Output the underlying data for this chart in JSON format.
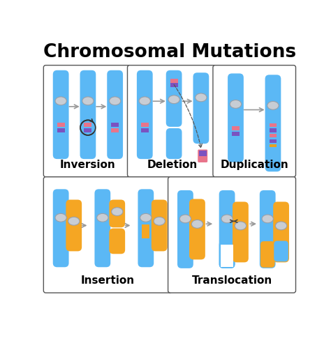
{
  "title": "Chromosomal Mutations",
  "title_fontsize": 19,
  "title_fontweight": "bold",
  "bg_color": "#ffffff",
  "chr_blue": "#5BB8F5",
  "chr_orange": "#F5A623",
  "centromere_color": "#c8cdd4",
  "centromere_edge": "#9aa0a8",
  "band_pink": "#E8748A",
  "band_purple": "#7B52C0",
  "arrow_color": "#aaaaaa",
  "dashed_color": "#555555",
  "panel_edge": "#555555",
  "labels": [
    "Inversion",
    "Deletion",
    "Duplication",
    "Insertion",
    "Translocation"
  ],
  "label_fontsize": 11,
  "label_fontweight": "bold"
}
